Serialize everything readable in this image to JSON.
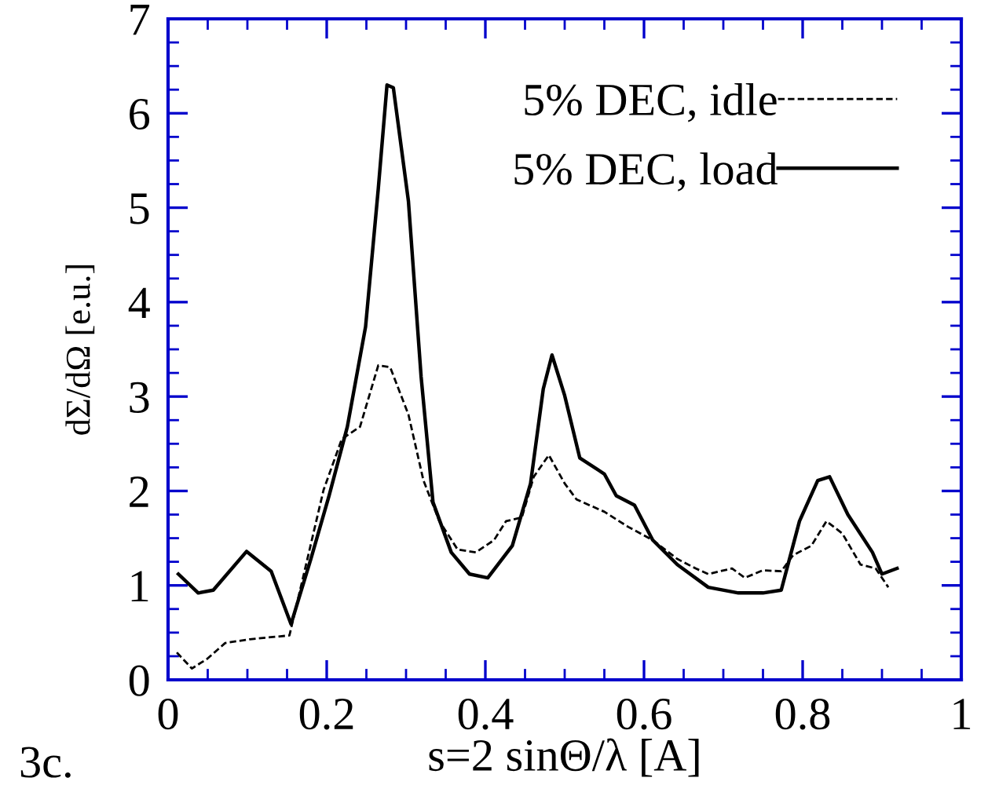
{
  "chart_data": {
    "type": "line",
    "xlabel": "s=2 sinΘ/λ [A]",
    "ylabel": "dΣ/dΩ [e.u.]",
    "xlim": [
      0,
      1
    ],
    "xticks": [
      0,
      0.2,
      0.4,
      0.6,
      0.8,
      1
    ],
    "ylim": [
      0,
      7
    ],
    "yticks": [
      0,
      1,
      2,
      3,
      4,
      5,
      6,
      7
    ],
    "grid": false,
    "legend": "top right",
    "marker": "none",
    "annotations": [
      "3c."
    ],
    "series": [
      {
        "name": "5% DEC, idle",
        "color": "#000000",
        "line_style": "dashed",
        "x": [
          0.011,
          0.03,
          0.049,
          0.072,
          0.103,
          0.153,
          0.172,
          0.196,
          0.219,
          0.242,
          0.265,
          0.28,
          0.303,
          0.322,
          0.342,
          0.365,
          0.388,
          0.411,
          0.426,
          0.446,
          0.461,
          0.48,
          0.5,
          0.515,
          0.55,
          0.58,
          0.611,
          0.642,
          0.665,
          0.681,
          0.711,
          0.727,
          0.75,
          0.773,
          0.788,
          0.811,
          0.83,
          0.85,
          0.873,
          0.892,
          0.908
        ],
        "values": [
          0.29,
          0.12,
          0.22,
          0.39,
          0.43,
          0.47,
          1.15,
          2.01,
          2.55,
          2.68,
          3.33,
          3.31,
          2.81,
          2.11,
          1.68,
          1.38,
          1.35,
          1.48,
          1.68,
          1.72,
          2.15,
          2.38,
          2.08,
          1.91,
          1.78,
          1.62,
          1.48,
          1.28,
          1.18,
          1.12,
          1.18,
          1.08,
          1.16,
          1.15,
          1.32,
          1.42,
          1.68,
          1.55,
          1.22,
          1.18,
          0.98
        ]
      },
      {
        "name": "5% DEC, load",
        "color": "#000000",
        "line_style": "solid",
        "x": [
          0.013,
          0.038,
          0.057,
          0.099,
          0.13,
          0.155,
          0.18,
          0.203,
          0.226,
          0.249,
          0.265,
          0.276,
          0.284,
          0.303,
          0.319,
          0.334,
          0.357,
          0.38,
          0.403,
          0.434,
          0.457,
          0.473,
          0.484,
          0.5,
          0.519,
          0.55,
          0.565,
          0.588,
          0.611,
          0.642,
          0.681,
          0.719,
          0.75,
          0.773,
          0.796,
          0.819,
          0.834,
          0.857,
          0.888,
          0.9,
          0.919
        ],
        "values": [
          1.12,
          0.92,
          0.95,
          1.36,
          1.15,
          0.59,
          1.28,
          1.95,
          2.68,
          3.74,
          5.2,
          6.3,
          6.27,
          5.07,
          3.21,
          1.88,
          1.35,
          1.12,
          1.08,
          1.42,
          2.08,
          3.08,
          3.44,
          3.01,
          2.35,
          2.18,
          1.95,
          1.85,
          1.48,
          1.22,
          0.98,
          0.92,
          0.92,
          0.95,
          1.68,
          2.11,
          2.15,
          1.75,
          1.35,
          1.12,
          1.18
        ]
      }
    ]
  }
}
